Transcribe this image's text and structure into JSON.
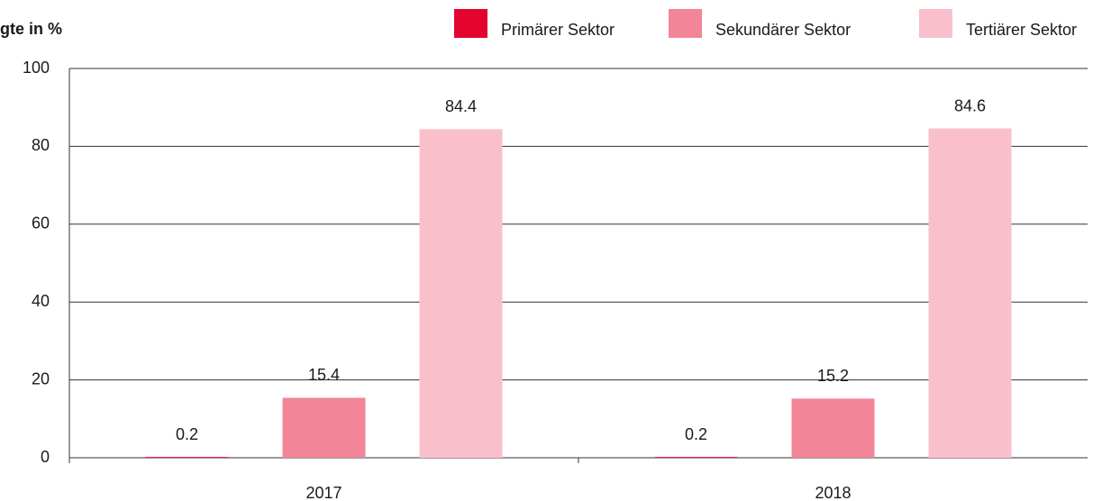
{
  "chart_data": {
    "type": "bar",
    "title": "gte in %",
    "categories": [
      "2017",
      "2018"
    ],
    "series": [
      {
        "name": "Primärer Sektor",
        "color": "#e4032e",
        "values": [
          0.2,
          0.2
        ]
      },
      {
        "name": "Sekundärer Sektor",
        "color": "#f28597",
        "values": [
          15.4,
          15.2
        ]
      },
      {
        "name": "Tertiärer Sektor",
        "color": "#f9c0cc",
        "values": [
          84.4,
          84.6
        ]
      }
    ],
    "ylim": [
      0,
      100
    ],
    "yticks": [
      0,
      20,
      40,
      60,
      80,
      100
    ],
    "grid": true,
    "legend": "top"
  }
}
